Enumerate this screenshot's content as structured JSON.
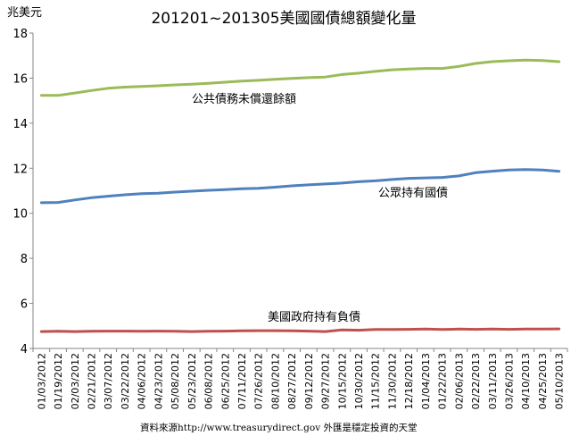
{
  "chart_data": {
    "type": "line",
    "title": "201201~201305美國國債總額變化量",
    "ylabel": "兆美元",
    "ylim": [
      4,
      18
    ],
    "yticks": [
      4,
      6,
      8,
      10,
      12,
      14,
      16,
      18
    ],
    "grid": "none",
    "legend": "none",
    "categories": [
      "01/03/2012",
      "01/19/2012",
      "02/03/2012",
      "02/21/2012",
      "03/07/2012",
      "03/22/2012",
      "04/06/2012",
      "04/23/2012",
      "05/08/2012",
      "05/23/2012",
      "06/08/2012",
      "06/25/2012",
      "07/11/2012",
      "07/26/2012",
      "08/10/2012",
      "08/27/2012",
      "09/12/2012",
      "09/27/2012",
      "10/15/2012",
      "10/30/2012",
      "11/15/2012",
      "11/30/2012",
      "12/18/2012",
      "01/04/2013",
      "01/22/2013",
      "02/06/2013",
      "02/22/2013",
      "03/11/2013",
      "03/26/2013",
      "04/10/2013",
      "04/25/2013",
      "05/10/2013"
    ],
    "series": [
      {
        "name": "公共債務未償還餘額",
        "color": "#9bbb59",
        "values": [
          15.23,
          15.23,
          15.34,
          15.45,
          15.55,
          15.6,
          15.63,
          15.66,
          15.7,
          15.73,
          15.77,
          15.82,
          15.87,
          15.9,
          15.95,
          15.99,
          16.02,
          16.05,
          16.16,
          16.22,
          16.3,
          16.37,
          16.4,
          16.43,
          16.43,
          16.52,
          16.65,
          16.73,
          16.77,
          16.8,
          16.78,
          16.73
        ]
      },
      {
        "name": "公眾持有國債",
        "color": "#4f81bd",
        "values": [
          10.47,
          10.48,
          10.59,
          10.69,
          10.76,
          10.82,
          10.87,
          10.89,
          10.94,
          10.98,
          11.02,
          11.05,
          11.09,
          11.11,
          11.16,
          11.22,
          11.26,
          11.3,
          11.34,
          11.4,
          11.44,
          11.5,
          11.55,
          11.57,
          11.59,
          11.66,
          11.8,
          11.87,
          11.92,
          11.94,
          11.92,
          11.86
        ]
      },
      {
        "name": "美國政府持有負債",
        "color": "#c0504d",
        "values": [
          4.75,
          4.76,
          4.75,
          4.76,
          4.77,
          4.77,
          4.76,
          4.77,
          4.76,
          4.75,
          4.76,
          4.77,
          4.78,
          4.79,
          4.79,
          4.78,
          4.77,
          4.75,
          4.82,
          4.81,
          4.84,
          4.84,
          4.85,
          4.86,
          4.84,
          4.86,
          4.85,
          4.86,
          4.85,
          4.86,
          4.86,
          4.87
        ]
      }
    ],
    "annotations": [
      "公共債務未償還餘額",
      "公眾持有國債",
      "美國政府持有負債"
    ],
    "source": "資料來源http://www.treasurydirect.gov 外匯是穩定投資的天堂"
  }
}
